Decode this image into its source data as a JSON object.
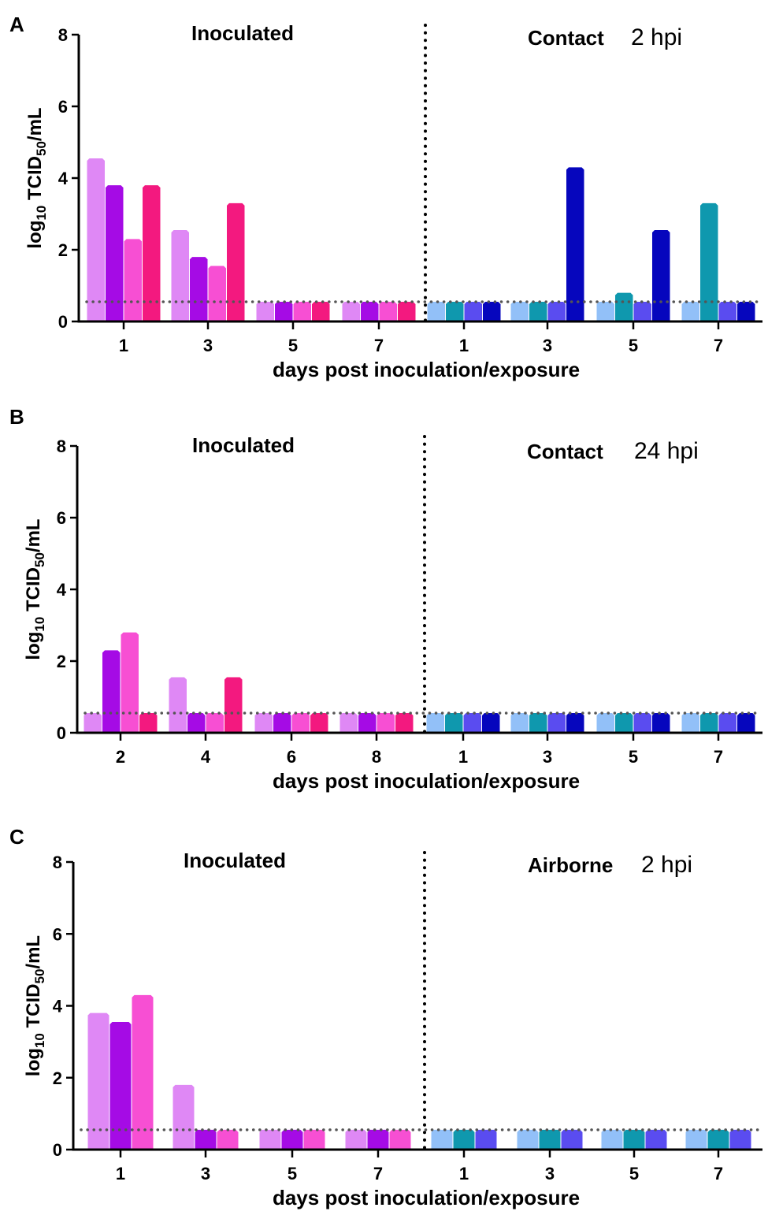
{
  "colors": {
    "inoculated": [
      "#df88f5",
      "#a50be5",
      "#f74fd3",
      "#f3197f"
    ],
    "contact": [
      "#92c0f8",
      "#0f98ae",
      "#5a4cf0",
      "#0606bd"
    ]
  },
  "chart_data": [
    {
      "type": "bar",
      "panel_label": "A",
      "ylabel_main": "log",
      "ylabel_sub1": "10",
      "ylabel_mid": " TCID",
      "ylabel_sub2": "50",
      "ylabel_end": "/mL",
      "ylim": [
        0,
        8
      ],
      "yticks": [
        "0",
        "2",
        "4",
        "6",
        "8"
      ],
      "xlabel": "days post inoculation/exposure",
      "limit_of_detection": 0.55,
      "left_title": "Inoculated",
      "right_title": "Contact",
      "right_suffix": "2 hpi",
      "groups": [
        {
          "label": "1",
          "side": "inoculated",
          "values": [
            4.55,
            3.8,
            2.3,
            3.8
          ]
        },
        {
          "label": "3",
          "side": "inoculated",
          "values": [
            2.55,
            1.8,
            1.55,
            3.3
          ]
        },
        {
          "label": "5",
          "side": "inoculated",
          "values": [
            0.55,
            0.55,
            0.55,
            0.55
          ]
        },
        {
          "label": "7",
          "side": "inoculated",
          "values": [
            0.55,
            0.55,
            0.55,
            0.55
          ]
        },
        {
          "label": "1",
          "side": "contact",
          "values": [
            0.55,
            0.55,
            0.55,
            0.55
          ]
        },
        {
          "label": "3",
          "side": "contact",
          "values": [
            0.55,
            0.55,
            0.55,
            4.3
          ]
        },
        {
          "label": "5",
          "side": "contact",
          "values": [
            0.55,
            0.8,
            0.55,
            2.55
          ]
        },
        {
          "label": "7",
          "side": "contact",
          "values": [
            0.55,
            3.3,
            0.55,
            0.55
          ]
        }
      ]
    },
    {
      "type": "bar",
      "panel_label": "B",
      "ylabel_main": "log",
      "ylabel_sub1": "10",
      "ylabel_mid": " TCID",
      "ylabel_sub2": "50",
      "ylabel_end": "/mL",
      "ylim": [
        0,
        8
      ],
      "yticks": [
        "0",
        "2",
        "4",
        "6",
        "8"
      ],
      "xlabel": "days post inoculation/exposure",
      "limit_of_detection": 0.55,
      "left_title": "Inoculated",
      "right_title": "Contact",
      "right_suffix": "24 hpi",
      "groups": [
        {
          "label": "2",
          "side": "inoculated",
          "values": [
            0.55,
            2.3,
            2.8,
            0.55
          ]
        },
        {
          "label": "4",
          "side": "inoculated",
          "values": [
            1.55,
            0.55,
            0.55,
            1.55
          ]
        },
        {
          "label": "6",
          "side": "inoculated",
          "values": [
            0.55,
            0.55,
            0.55,
            0.55
          ]
        },
        {
          "label": "8",
          "side": "inoculated",
          "values": [
            0.55,
            0.55,
            0.55,
            0.55
          ]
        },
        {
          "label": "1",
          "side": "contact",
          "values": [
            0.55,
            0.55,
            0.55,
            0.55
          ]
        },
        {
          "label": "3",
          "side": "contact",
          "values": [
            0.55,
            0.55,
            0.55,
            0.55
          ]
        },
        {
          "label": "5",
          "side": "contact",
          "values": [
            0.55,
            0.55,
            0.55,
            0.55
          ]
        },
        {
          "label": "7",
          "side": "contact",
          "values": [
            0.55,
            0.55,
            0.55,
            0.55
          ]
        }
      ]
    },
    {
      "type": "bar",
      "panel_label": "C",
      "ylabel_main": "log",
      "ylabel_sub1": "10",
      "ylabel_mid": " TCID",
      "ylabel_sub2": "50",
      "ylabel_end": "/mL",
      "ylim": [
        0,
        8
      ],
      "yticks": [
        "0",
        "2",
        "4",
        "6",
        "8"
      ],
      "xlabel": "days post inoculation/exposure",
      "limit_of_detection": 0.55,
      "left_title": "Inoculated",
      "right_title": "Airborne",
      "right_suffix": "2 hpi",
      "groups": [
        {
          "label": "1",
          "side": "inoculated",
          "values": [
            3.8,
            3.55,
            4.3
          ]
        },
        {
          "label": "3",
          "side": "inoculated",
          "values": [
            1.8,
            0.55,
            0.55
          ]
        },
        {
          "label": "5",
          "side": "inoculated",
          "values": [
            0.55,
            0.55,
            0.55
          ]
        },
        {
          "label": "7",
          "side": "inoculated",
          "values": [
            0.55,
            0.55,
            0.55
          ]
        },
        {
          "label": "1",
          "side": "contact",
          "values": [
            0.55,
            0.55,
            0.55
          ]
        },
        {
          "label": "3",
          "side": "contact",
          "values": [
            0.55,
            0.55,
            0.55
          ]
        },
        {
          "label": "5",
          "side": "contact",
          "values": [
            0.55,
            0.55,
            0.55
          ]
        },
        {
          "label": "7",
          "side": "contact",
          "values": [
            0.55,
            0.55,
            0.55
          ]
        }
      ]
    }
  ]
}
